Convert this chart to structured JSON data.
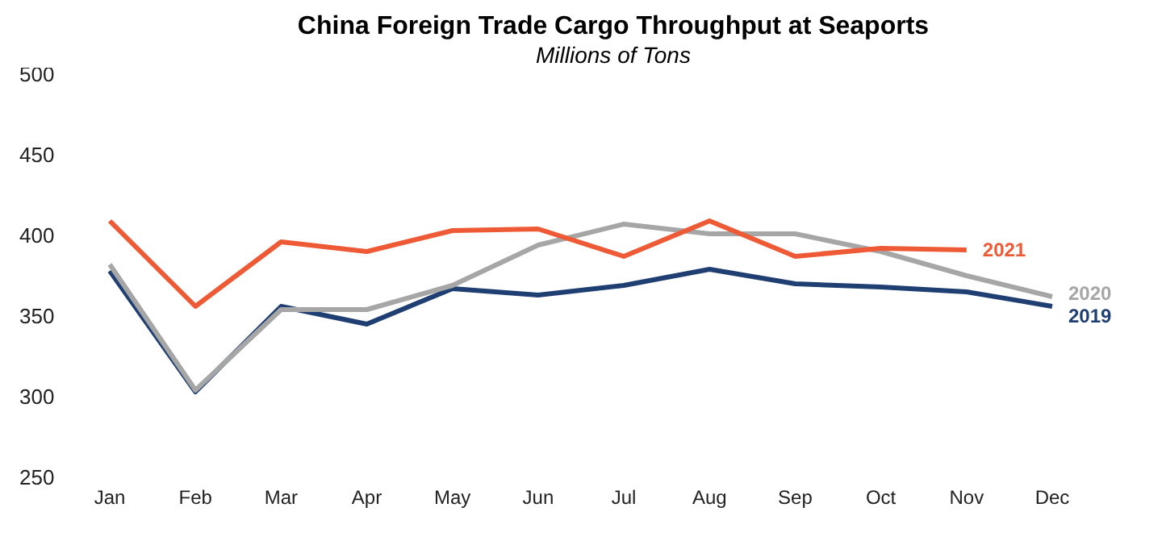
{
  "chart_data": {
    "type": "line",
    "title": "China Foreign Trade Cargo Throughput at Seaports",
    "subtitle": "Millions of Tons",
    "categories": [
      "Jan",
      "Feb",
      "Mar",
      "Apr",
      "May",
      "Jun",
      "Jul",
      "Aug",
      "Sep",
      "Oct",
      "Nov",
      "Dec"
    ],
    "series": [
      {
        "name": "2019",
        "color": "#1f3f73",
        "values": [
          378,
          303,
          356,
          345,
          367,
          363,
          369,
          379,
          370,
          368,
          365,
          356
        ]
      },
      {
        "name": "2020",
        "color": "#a6a6a6",
        "values": [
          382,
          304,
          354,
          354,
          369,
          394,
          407,
          401,
          401,
          390,
          375,
          362
        ]
      },
      {
        "name": "2021",
        "color": "#ed5a35",
        "values": [
          409,
          356,
          396,
          390,
          403,
          404,
          387,
          409,
          387,
          392,
          391,
          null
        ]
      }
    ],
    "ylim": [
      250,
      500
    ],
    "yticks": [
      250,
      300,
      350,
      400,
      450,
      500
    ],
    "grid": false,
    "legend": false,
    "marker": "none",
    "line_style": "solid"
  }
}
